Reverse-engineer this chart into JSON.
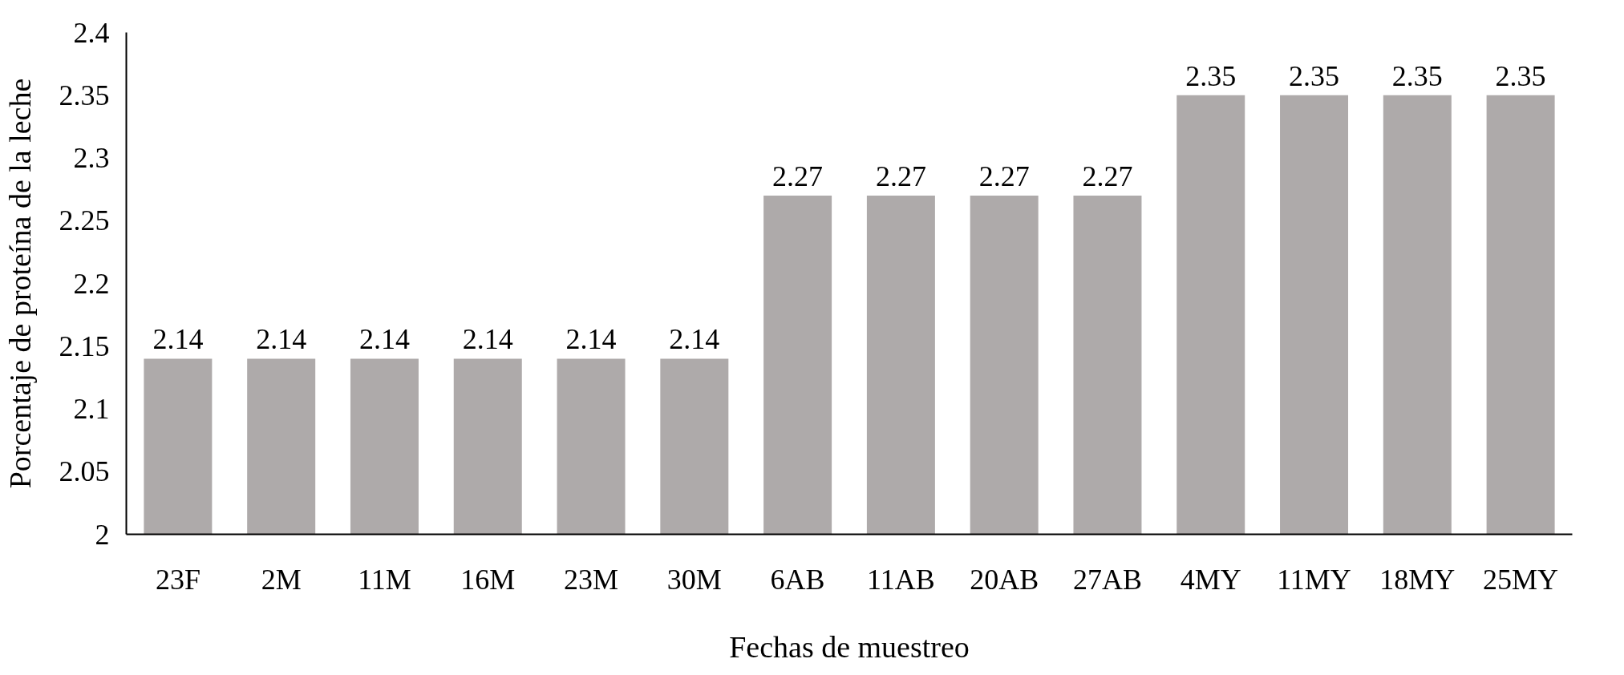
{
  "chart_data": {
    "type": "bar",
    "xlabel": "Fechas de muestreo",
    "ylabel": "Porcentaje de proteína de la leche",
    "categories": [
      "23F",
      "2M",
      "11M",
      "16M",
      "23M",
      "30M",
      "6AB",
      "11AB",
      "20AB",
      "27AB",
      "4MY",
      "11MY",
      "18MY",
      "25MY"
    ],
    "values": [
      2.14,
      2.14,
      2.14,
      2.14,
      2.14,
      2.14,
      2.27,
      2.27,
      2.27,
      2.27,
      2.35,
      2.35,
      2.35,
      2.35
    ],
    "color": "#aeaaaa",
    "ylim": [
      2,
      2.4
    ],
    "yticks": [
      2,
      2.05,
      2.1,
      2.15,
      2.2,
      2.25,
      2.3,
      2.35,
      2.4
    ],
    "data_labels": true,
    "grid": false
  }
}
